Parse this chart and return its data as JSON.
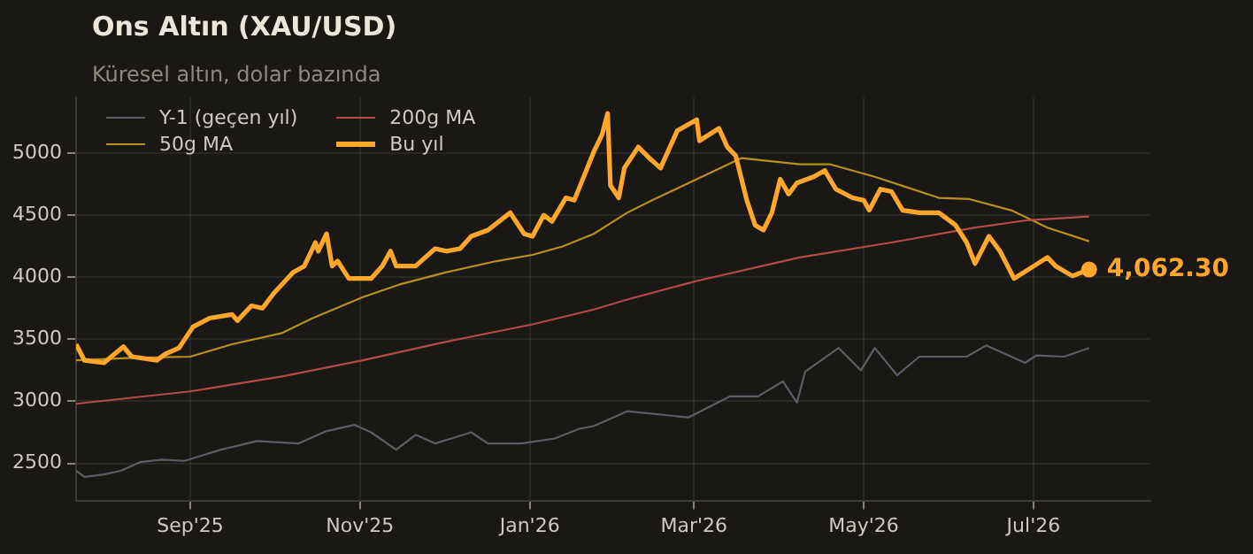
{
  "chart_data": {
    "type": "line",
    "title": "Ons Altın (XAU/USD)",
    "subtitle": "Küresel altın, dolar bazında",
    "xlim": [
      "2025-07-22",
      "2026-08-12"
    ],
    "xticks": [
      {
        "value": "2025-09-01",
        "label": "Sep'25"
      },
      {
        "value": "2025-11-01",
        "label": "Nov'25"
      },
      {
        "value": "2026-01-01",
        "label": "Jan'26"
      },
      {
        "value": "2026-03-01",
        "label": "Mar'26"
      },
      {
        "value": "2026-05-01",
        "label": "May'26"
      },
      {
        "value": "2026-07-01",
        "label": "Jul'26"
      }
    ],
    "ylim": [
      2200,
      5450
    ],
    "yticks": [
      2500,
      3000,
      3500,
      4000,
      4500,
      5000
    ],
    "grid": true,
    "legend": "top left",
    "marker": "none",
    "line_style": "solid",
    "annotations": [
      {
        "text": "4,062.30",
        "x": "2026-07-21",
        "y": 4062.3
      }
    ],
    "series": [
      {
        "name": "Y-1 (geçen yıl)",
        "color": "#5a5e66",
        "x": [
          "2025-07-22",
          "2025-07-25",
          "2025-08-01",
          "2025-08-07",
          "2025-08-14",
          "2025-08-22",
          "2025-08-30",
          "2025-09-12",
          "2025-09-25",
          "2025-10-10",
          "2025-10-20",
          "2025-10-30",
          "2025-11-05",
          "2025-11-14",
          "2025-11-21",
          "2025-11-28",
          "2025-12-11",
          "2025-12-17",
          "2025-12-29",
          "2026-01-10",
          "2026-01-19",
          "2026-01-24",
          "2026-02-05",
          "2026-02-27",
          "2026-03-14",
          "2026-03-24",
          "2026-04-02",
          "2026-04-07",
          "2026-04-10",
          "2026-04-22",
          "2026-04-30",
          "2026-05-05",
          "2026-05-13",
          "2026-05-21",
          "2026-06-07",
          "2026-06-14",
          "2026-06-28",
          "2026-07-02",
          "2026-07-12",
          "2026-07-21"
        ],
        "values": [
          2440,
          2390,
          2410,
          2440,
          2510,
          2530,
          2520,
          2610,
          2680,
          2660,
          2760,
          2810,
          2750,
          2610,
          2730,
          2660,
          2750,
          2660,
          2660,
          2700,
          2780,
          2800,
          2920,
          2870,
          3040,
          3040,
          3160,
          2990,
          3240,
          3430,
          3250,
          3430,
          3210,
          3360,
          3360,
          3450,
          3310,
          3370,
          3360,
          3430
        ]
      },
      {
        "name": "50g MA",
        "color": "#b8901f",
        "x": [
          "2025-07-22",
          "2025-08-11",
          "2025-09-01",
          "2025-09-16",
          "2025-10-04",
          "2025-10-15",
          "2025-11-02",
          "2025-11-15",
          "2025-12-02",
          "2025-12-20",
          "2026-01-02",
          "2026-01-13",
          "2026-01-24",
          "2026-02-05",
          "2026-02-14",
          "2026-03-02",
          "2026-03-18",
          "2026-04-08",
          "2026-04-19",
          "2026-05-05",
          "2026-05-28",
          "2026-06-08",
          "2026-06-23",
          "2026-07-06",
          "2026-07-21"
        ],
        "values": [
          3330,
          3350,
          3360,
          3460,
          3550,
          3670,
          3840,
          3940,
          4040,
          4130,
          4180,
          4250,
          4350,
          4520,
          4620,
          4790,
          4960,
          4910,
          4910,
          4810,
          4640,
          4630,
          4540,
          4400,
          4290
        ]
      },
      {
        "name": "200g MA",
        "color": "#b54a4a",
        "x": [
          "2025-07-22",
          "2025-09-01",
          "2025-10-04",
          "2025-11-02",
          "2025-12-02",
          "2026-01-02",
          "2026-01-24",
          "2026-02-05",
          "2026-03-02",
          "2026-04-08",
          "2026-05-11",
          "2026-06-10",
          "2026-06-29",
          "2026-07-21"
        ],
        "values": [
          2980,
          3080,
          3200,
          3330,
          3480,
          3620,
          3740,
          3820,
          3970,
          4160,
          4280,
          4400,
          4460,
          4490
        ]
      },
      {
        "name": "Bu yıl",
        "color": "#ffa62b",
        "x": [
          "2025-07-22",
          "2025-07-25",
          "2025-08-01",
          "2025-08-08",
          "2025-08-11",
          "2025-08-20",
          "2025-08-23",
          "2025-08-28",
          "2025-09-02",
          "2025-09-08",
          "2025-09-16",
          "2025-09-18",
          "2025-09-23",
          "2025-09-27",
          "2025-10-01",
          "2025-10-08",
          "2025-10-12",
          "2025-10-16",
          "2025-10-17",
          "2025-10-20",
          "2025-10-22",
          "2025-10-24",
          "2025-10-28",
          "2025-11-05",
          "2025-11-09",
          "2025-11-12",
          "2025-11-14",
          "2025-11-21",
          "2025-11-28",
          "2025-12-02",
          "2025-12-07",
          "2025-12-11",
          "2025-12-17",
          "2025-12-25",
          "2025-12-30",
          "2026-01-02",
          "2026-01-06",
          "2026-01-09",
          "2026-01-14",
          "2026-01-17",
          "2026-01-24",
          "2026-01-27",
          "2026-01-29",
          "2026-01-30",
          "2026-02-02",
          "2026-02-04",
          "2026-02-09",
          "2026-02-13",
          "2026-02-17",
          "2026-02-23",
          "2026-03-02",
          "2026-03-03",
          "2026-03-10",
          "2026-03-13",
          "2026-03-16",
          "2026-03-20",
          "2026-03-23",
          "2026-03-26",
          "2026-03-29",
          "2026-04-01",
          "2026-04-04",
          "2026-04-07",
          "2026-04-13",
          "2026-04-17",
          "2026-04-21",
          "2026-04-27",
          "2026-05-01",
          "2026-05-03",
          "2026-05-07",
          "2026-05-11",
          "2026-05-15",
          "2026-05-21",
          "2026-05-28",
          "2026-06-03",
          "2026-06-07",
          "2026-06-10",
          "2026-06-15",
          "2026-06-19",
          "2026-06-24",
          "2026-06-29",
          "2026-07-06",
          "2026-07-09",
          "2026-07-15",
          "2026-07-21"
        ],
        "values": [
          3460,
          3330,
          3310,
          3440,
          3360,
          3330,
          3380,
          3430,
          3600,
          3670,
          3700,
          3650,
          3770,
          3750,
          3870,
          4040,
          4090,
          4280,
          4210,
          4350,
          4090,
          4130,
          3990,
          3990,
          4090,
          4210,
          4090,
          4090,
          4230,
          4210,
          4230,
          4330,
          4380,
          4520,
          4350,
          4330,
          4500,
          4450,
          4640,
          4620,
          5010,
          5150,
          5320,
          4740,
          4640,
          4880,
          5050,
          4960,
          4880,
          5180,
          5270,
          5100,
          5200,
          5050,
          4980,
          4620,
          4420,
          4380,
          4520,
          4790,
          4670,
          4760,
          4810,
          4860,
          4710,
          4640,
          4620,
          4540,
          4710,
          4690,
          4540,
          4520,
          4520,
          4420,
          4280,
          4110,
          4330,
          4210,
          3990,
          4060,
          4160,
          4090,
          4010,
          4062.3
        ]
      }
    ]
  }
}
